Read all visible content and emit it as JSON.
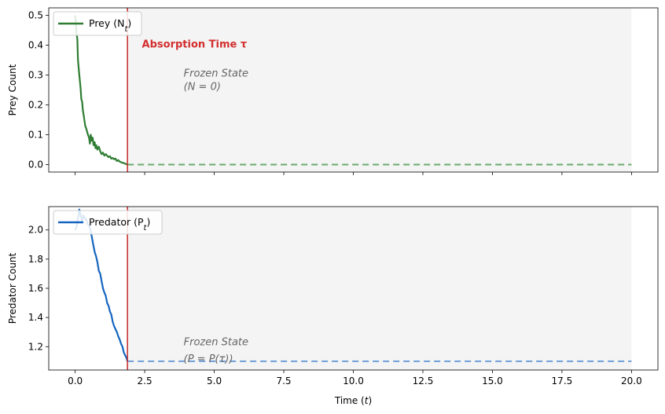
{
  "chart_data": [
    {
      "type": "line",
      "ylabel": "Prey Count",
      "xlim": [
        -0.95,
        20.95
      ],
      "ylim": [
        -0.025,
        0.525
      ],
      "yticks": [
        0.0,
        0.1,
        0.2,
        0.3,
        0.4,
        0.5
      ],
      "ytick_labels": [
        "0.0",
        "0.1",
        "0.2",
        "0.3",
        "0.4",
        "0.5"
      ],
      "legend": {
        "label": "Prey (N",
        "label_sub": "t",
        "label_end": ")",
        "placement": "top-left"
      },
      "absorption_time": 1.88,
      "annotation": {
        "text": "Absorption Time τ",
        "color": "#d32f2f"
      },
      "frozen_state": {
        "title": "Frozen State",
        "detail": "(N = 0)"
      },
      "series": [
        {
          "name": "Prey (Nt)",
          "color": "#2e7d32",
          "x": [
            0.0,
            0.02,
            0.05,
            0.08,
            0.1,
            0.13,
            0.15,
            0.18,
            0.2,
            0.22,
            0.25,
            0.28,
            0.3,
            0.33,
            0.36,
            0.4,
            0.43,
            0.46,
            0.5,
            0.53,
            0.56,
            0.6,
            0.63,
            0.66,
            0.7,
            0.73,
            0.76,
            0.8,
            0.85,
            0.9,
            0.95,
            1.0,
            1.05,
            1.1,
            1.15,
            1.2,
            1.25,
            1.3,
            1.35,
            1.4,
            1.45,
            1.5,
            1.55,
            1.6,
            1.65,
            1.7,
            1.75,
            1.8,
            1.85,
            1.88
          ],
          "y": [
            0.5,
            0.48,
            0.44,
            0.42,
            0.35,
            0.32,
            0.3,
            0.27,
            0.25,
            0.22,
            0.21,
            0.18,
            0.17,
            0.15,
            0.13,
            0.12,
            0.11,
            0.1,
            0.09,
            0.07,
            0.1,
            0.08,
            0.09,
            0.065,
            0.075,
            0.055,
            0.065,
            0.05,
            0.06,
            0.045,
            0.035,
            0.04,
            0.03,
            0.035,
            0.03,
            0.025,
            0.028,
            0.02,
            0.022,
            0.018,
            0.02,
            0.012,
            0.015,
            0.01,
            0.008,
            0.006,
            0.005,
            0.003,
            0.001,
            0.0
          ]
        }
      ],
      "frozen_line": {
        "value": 0.0,
        "from": 1.88,
        "to": 20.0,
        "color": "#6aaa6e"
      }
    },
    {
      "type": "line",
      "xlabel": "Time (t)",
      "xlabel_main": "Time (",
      "xlabel_var": "t",
      "xlabel_end": ")",
      "ylabel": "Predator Count",
      "xlim": [
        -0.95,
        20.95
      ],
      "ylim": [
        1.04,
        2.16
      ],
      "xticks": [
        0.0,
        2.5,
        5.0,
        7.5,
        10.0,
        12.5,
        15.0,
        17.5,
        20.0
      ],
      "xtick_labels": [
        "0.0",
        "2.5",
        "5.0",
        "7.5",
        "10.0",
        "12.5",
        "15.0",
        "17.5",
        "20.0"
      ],
      "yticks": [
        1.2,
        1.4,
        1.6,
        1.8,
        2.0
      ],
      "ytick_labels": [
        "1.2",
        "1.4",
        "1.6",
        "1.8",
        "2.0"
      ],
      "legend": {
        "label": "Predator (P",
        "label_sub": "t",
        "label_end": ")",
        "placement": "top-left"
      },
      "absorption_time": 1.88,
      "frozen_state": {
        "title": "Frozen State",
        "detail": "(P = P(τ))"
      },
      "series": [
        {
          "name": "Predator (Pt)",
          "color": "#1565c0",
          "x": [
            0.0,
            0.05,
            0.1,
            0.15,
            0.2,
            0.25,
            0.3,
            0.35,
            0.4,
            0.45,
            0.5,
            0.55,
            0.6,
            0.65,
            0.7,
            0.75,
            0.8,
            0.85,
            0.9,
            0.95,
            1.0,
            1.05,
            1.1,
            1.15,
            1.2,
            1.25,
            1.3,
            1.35,
            1.4,
            1.45,
            1.5,
            1.55,
            1.6,
            1.65,
            1.7,
            1.75,
            1.8,
            1.85,
            1.88
          ],
          "y": [
            2.0,
            2.02,
            2.08,
            2.14,
            2.1,
            2.06,
            2.1,
            2.08,
            2.07,
            2.04,
            2.03,
            2.0,
            1.95,
            1.9,
            1.85,
            1.82,
            1.78,
            1.72,
            1.7,
            1.65,
            1.6,
            1.57,
            1.55,
            1.5,
            1.48,
            1.44,
            1.42,
            1.37,
            1.34,
            1.32,
            1.3,
            1.27,
            1.25,
            1.22,
            1.2,
            1.16,
            1.14,
            1.12,
            1.1
          ]
        }
      ],
      "frozen_line": {
        "value": 1.1,
        "from": 1.88,
        "to": 20.0,
        "color": "#6f9fd8"
      }
    }
  ]
}
